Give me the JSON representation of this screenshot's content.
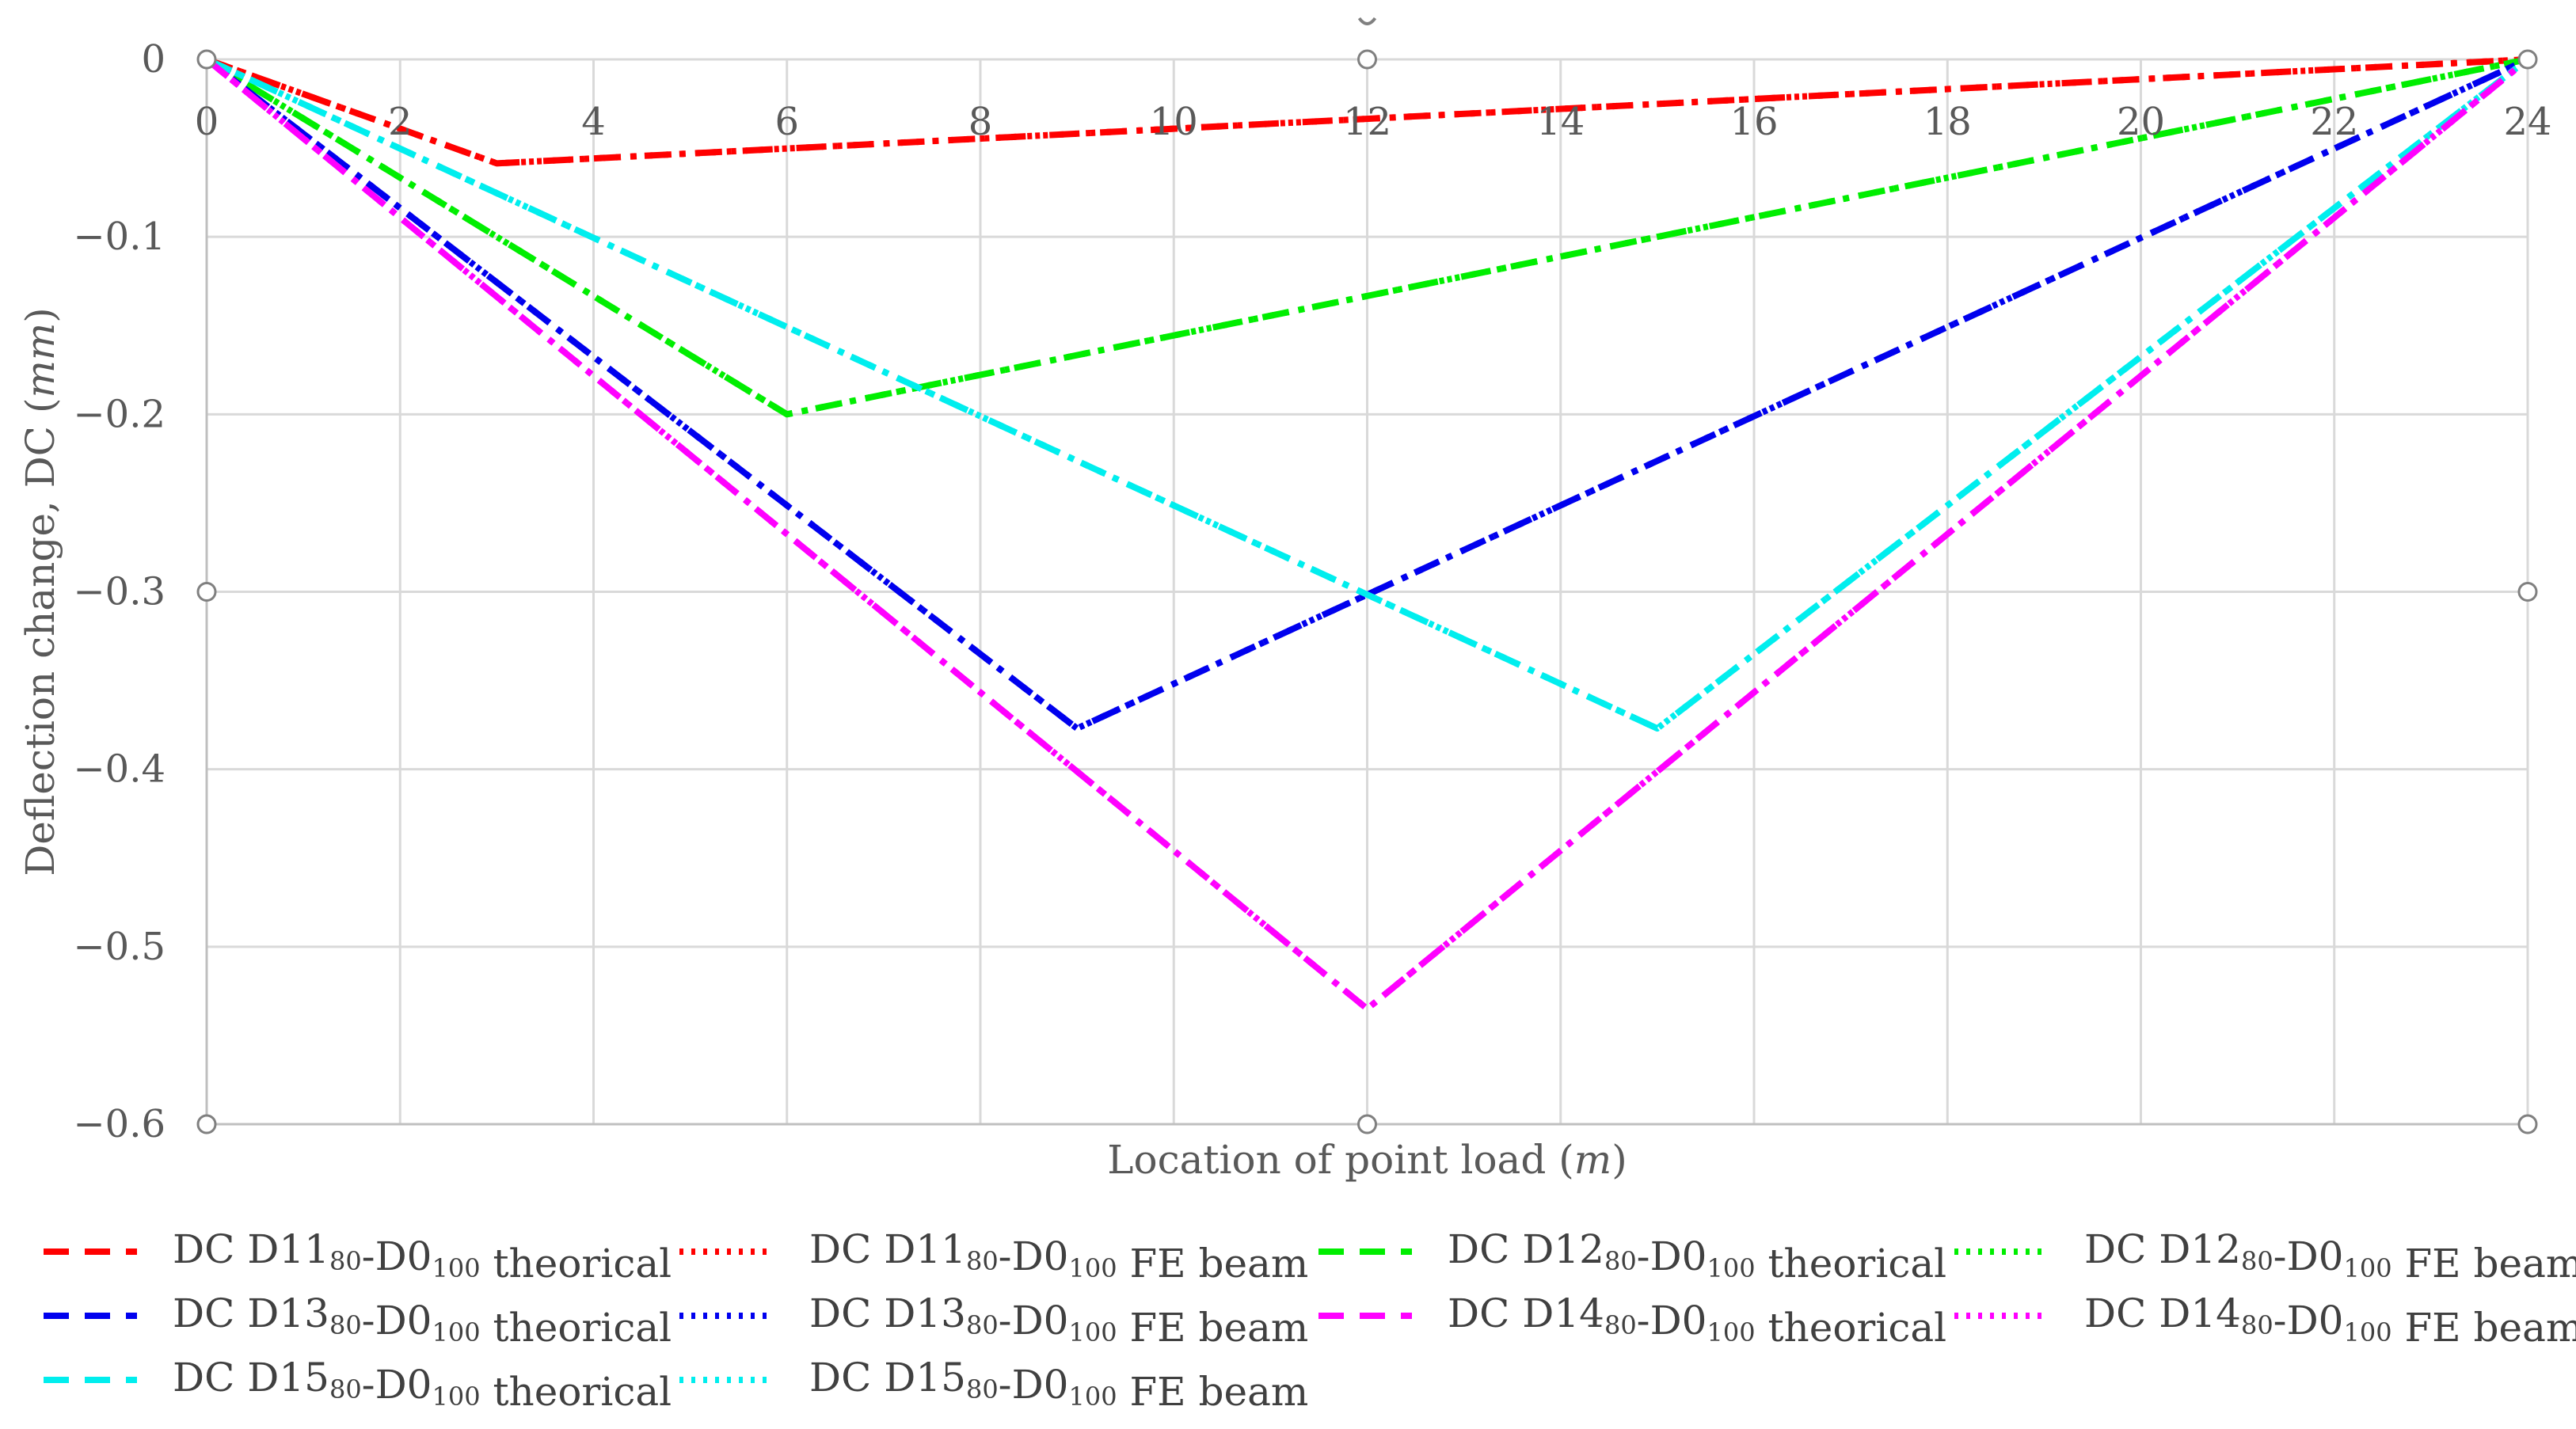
{
  "chart_data": {
    "type": "line",
    "xlabel": "Location of point load (m)",
    "ylabel": "Deflection change, DC (mm)",
    "xlim": [
      0,
      24
    ],
    "ylim": [
      -0.6,
      0
    ],
    "x_ticks": [
      0,
      2,
      4,
      6,
      8,
      10,
      12,
      14,
      16,
      18,
      20,
      22,
      24
    ],
    "y_ticks": [
      0,
      -0.1,
      -0.2,
      -0.3,
      -0.4,
      -0.5,
      -0.6
    ],
    "x_tick_labels": [
      "0",
      "2",
      "4",
      "6",
      "8",
      "10",
      "12",
      "14",
      "16",
      "18",
      "20",
      "22",
      "24"
    ],
    "y_tick_labels": [
      "0",
      "−0.1",
      "−0.2",
      "−0.3",
      "−0.4",
      "−0.5",
      "−0.6"
    ],
    "grid": true,
    "legend_position": "bottom",
    "series": [
      {
        "name": "DC D11₈₀-D0₁₀₀ theorical",
        "color": "#ff0000",
        "style": "dash",
        "x": [
          0,
          3,
          24
        ],
        "y": [
          0,
          -0.0586,
          0
        ]
      },
      {
        "name": "DC D11₈₀-D0₁₀₀ FE beam",
        "color": "#ff0000",
        "style": "dot",
        "x": [
          0,
          3,
          24
        ],
        "y": [
          0,
          -0.0586,
          0
        ]
      },
      {
        "name": "DC D12₈₀-D0₁₀₀ theorical",
        "color": "#00ee00",
        "style": "dash",
        "x": [
          0,
          6,
          24
        ],
        "y": [
          0,
          -0.2,
          0
        ]
      },
      {
        "name": "DC D12₈₀-D0₁₀₀ FE beam",
        "color": "#00ee00",
        "style": "dot",
        "x": [
          0,
          6,
          24
        ],
        "y": [
          0,
          -0.2,
          0
        ]
      },
      {
        "name": "DC D13₈₀-D0₁₀₀ theorical",
        "color": "#0000ee",
        "style": "dash",
        "x": [
          0,
          9,
          24
        ],
        "y": [
          0,
          -0.377,
          0
        ]
      },
      {
        "name": "DC D13₈₀-D0₁₀₀ FE beam",
        "color": "#0000ee",
        "style": "dot",
        "x": [
          0,
          9,
          24
        ],
        "y": [
          0,
          -0.377,
          0
        ]
      },
      {
        "name": "DC D14₈₀-D0₁₀₀ theorical",
        "color": "#ff00ff",
        "style": "dash",
        "x": [
          0,
          12,
          24
        ],
        "y": [
          0,
          -0.535,
          0
        ]
      },
      {
        "name": "DC D14₈₀-D0₁₀₀ FE beam",
        "color": "#ff00ff",
        "style": "dot",
        "x": [
          0,
          12,
          24
        ],
        "y": [
          0,
          -0.535,
          0
        ]
      },
      {
        "name": "DC D15₈₀-D0₁₀₀ theorical",
        "color": "#00eeee",
        "style": "dash",
        "x": [
          0,
          15,
          24
        ],
        "y": [
          0,
          -0.377,
          0
        ]
      },
      {
        "name": "DC D15₈₀-D0₁₀₀ FE beam",
        "color": "#00eeee",
        "style": "dot",
        "x": [
          0,
          15,
          24
        ],
        "y": [
          0,
          -0.377,
          0
        ]
      }
    ]
  }
}
